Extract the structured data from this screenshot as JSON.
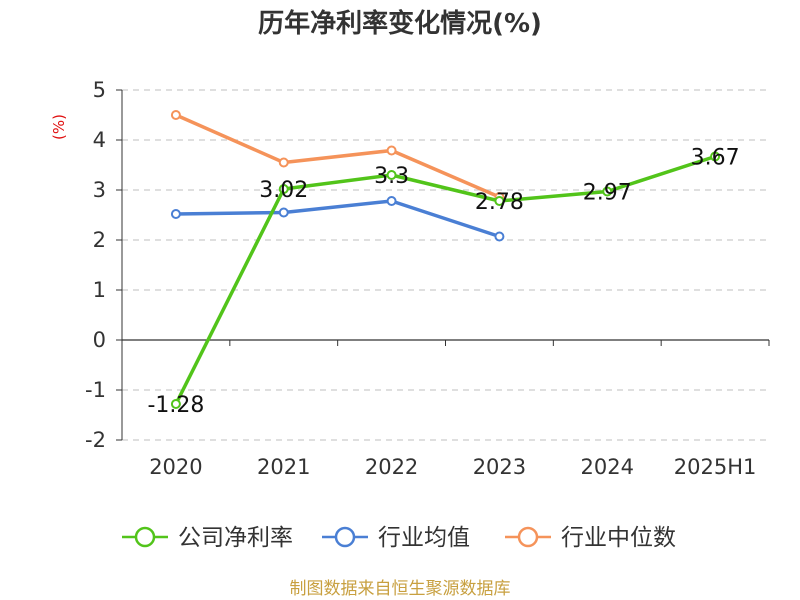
{
  "title": "历年净利率变化情况(%)",
  "source": "制图数据来自恒生聚源数据库",
  "chart_data": {
    "type": "line",
    "title": "历年净利率变化情况(%)",
    "ylabel": "(%)",
    "categories": [
      "2020",
      "2021",
      "2022",
      "2023",
      "2024",
      "2025H1"
    ],
    "ylim": [
      -2,
      5
    ],
    "yticks": [
      5,
      4,
      3,
      2,
      1,
      0,
      -1,
      -2
    ],
    "grid": true,
    "legend_position": "bottom",
    "series": [
      {
        "name": "公司净利率",
        "color": "#52c41a",
        "values": [
          -1.28,
          3.02,
          3.3,
          2.78,
          2.97,
          3.67
        ],
        "labels": [
          "-1.28",
          "3.02",
          "3.3",
          "2.78",
          "2.97",
          "3.67"
        ]
      },
      {
        "name": "行业均值",
        "color": "#4a7fd4",
        "values": [
          2.52,
          2.55,
          2.78,
          2.07,
          null,
          null
        ]
      },
      {
        "name": "行业中位数",
        "color": "#f5935a",
        "values": [
          4.5,
          3.55,
          3.79,
          2.86,
          null,
          null
        ]
      }
    ]
  }
}
